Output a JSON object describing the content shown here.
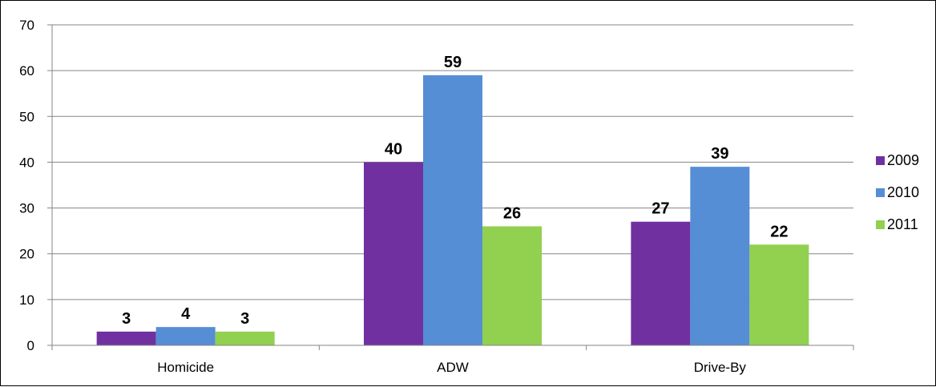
{
  "chart_data": {
    "type": "bar",
    "categories": [
      "Homicide",
      "ADW",
      "Drive-By"
    ],
    "series": [
      {
        "name": "2009",
        "values": [
          3,
          40,
          27
        ],
        "color": "#7030A0"
      },
      {
        "name": "2010",
        "values": [
          4,
          59,
          39
        ],
        "color": "#558ED5"
      },
      {
        "name": "2011",
        "values": [
          3,
          26,
          22
        ],
        "color": "#92D050"
      }
    ],
    "yticks": [
      0,
      10,
      20,
      30,
      40,
      50,
      60,
      70
    ],
    "ylim": [
      0,
      70
    ],
    "grid": true,
    "legend_position": "right",
    "data_labels": true
  }
}
